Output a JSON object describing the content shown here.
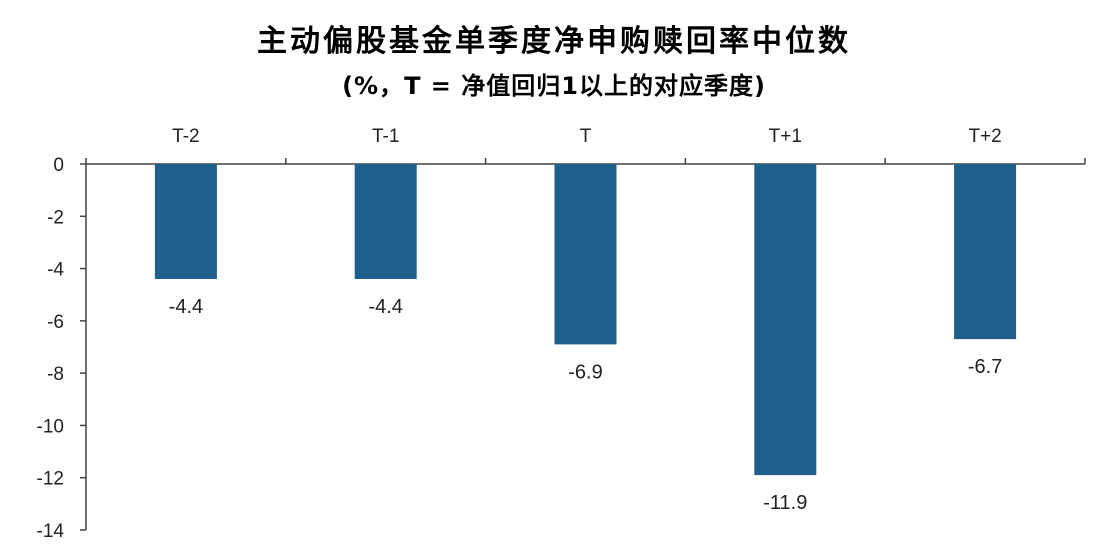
{
  "chart_data": {
    "type": "bar",
    "title": "主动偏股基金单季度净申购赎回率中位数",
    "subtitle": "(%，T = 净值回归1以上的对应季度)",
    "categories": [
      "T-2",
      "T-1",
      "T",
      "T+1",
      "T+2"
    ],
    "values": [
      -4.4,
      -4.4,
      -6.9,
      -11.9,
      -6.7
    ],
    "data_labels": [
      "-4.4",
      "-4.4",
      "-6.9",
      "-11.9",
      "-6.7"
    ],
    "ylim": [
      -14,
      0
    ],
    "yticks": [
      0,
      -2,
      -4,
      -6,
      -8,
      -10,
      -12,
      -14
    ],
    "ytick_labels": [
      "0",
      "-2",
      "-4",
      "-6",
      "-8",
      "-10",
      "-12",
      "-14"
    ],
    "category_axis_position": "top",
    "bar_color": "#1f5f8b",
    "grid": false,
    "legend": "none"
  }
}
